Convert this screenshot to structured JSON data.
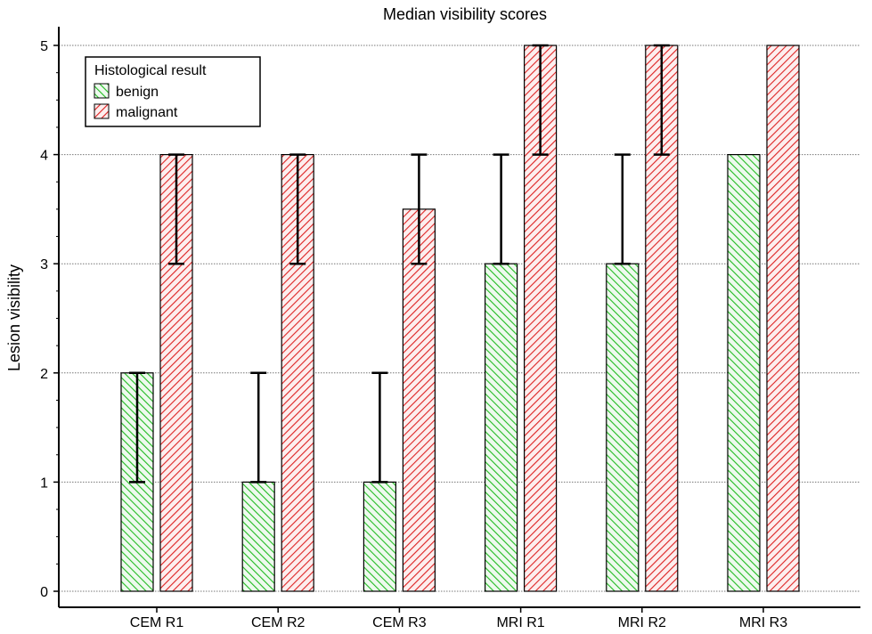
{
  "chart_data": {
    "type": "bar",
    "title": "Median visibility scores",
    "xlabel": "",
    "ylabel": "Lesion visibility",
    "categories": [
      "CEM R1",
      "CEM R2",
      "CEM R3",
      "MRI R1",
      "MRI R2",
      "MRI R3"
    ],
    "ylim": [
      0,
      5
    ],
    "yticks": [
      "0",
      "1",
      "2",
      "3",
      "4",
      "5"
    ],
    "grid": "horizontal dotted",
    "legend": {
      "title": "Histological result",
      "placement": "top-left"
    },
    "series": [
      {
        "name": "benign",
        "color": "#22bb22",
        "fill": "#dcf5dc",
        "hatch": "backslash",
        "values": [
          2,
          1,
          1,
          3,
          3,
          4
        ],
        "error_low": [
          1,
          1,
          1,
          3,
          3,
          4
        ],
        "error_high": [
          2,
          2,
          2,
          4,
          4,
          4
        ]
      },
      {
        "name": "malignant",
        "color": "#dd2222",
        "fill": "#fbe0e0",
        "hatch": "slash",
        "values": [
          4,
          4,
          3.5,
          5,
          5,
          5
        ],
        "error_low": [
          3,
          3,
          3,
          4,
          4,
          5
        ],
        "error_high": [
          4,
          4,
          4,
          5,
          5,
          5
        ]
      }
    ]
  }
}
